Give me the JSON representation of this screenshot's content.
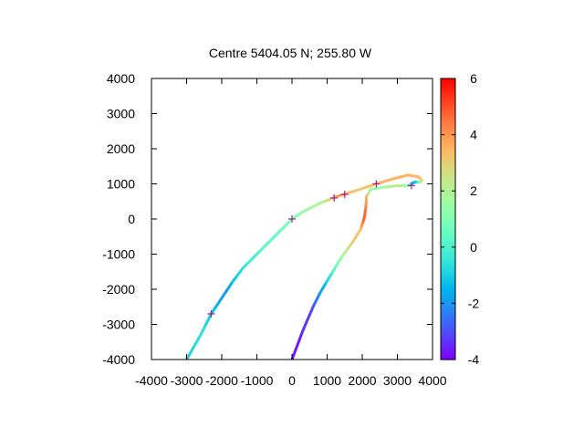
{
  "chart_data": {
    "type": "line",
    "title": "Centre 5404.05 N; 255.80  W",
    "xlabel": "",
    "ylabel": "",
    "xlim": [
      -4000,
      4000
    ],
    "ylim": [
      -4000,
      4000
    ],
    "x_ticks": [
      -4000,
      -3000,
      -2000,
      -1000,
      0,
      1000,
      2000,
      3000,
      4000
    ],
    "y_ticks": [
      -4000,
      -3000,
      -2000,
      -1000,
      0,
      1000,
      2000,
      3000,
      4000
    ],
    "grid": false,
    "colorbar": {
      "range": [
        -4,
        6
      ],
      "ticks": [
        -4,
        -2,
        0,
        2,
        4,
        6
      ],
      "palette": "rainbow"
    },
    "series": [
      {
        "points": [
          {
            "x": 0,
            "y": -4000,
            "c": -3.8
          },
          {
            "x": 300,
            "y": -3200,
            "c": -3.5
          },
          {
            "x": 600,
            "y": -2500,
            "c": -3.0
          },
          {
            "x": 800,
            "y": -2100,
            "c": -2.0
          },
          {
            "x": 1100,
            "y": -1600,
            "c": -0.5
          },
          {
            "x": 1400,
            "y": -1100,
            "c": 1.5
          },
          {
            "x": 1700,
            "y": -700,
            "c": 3.0
          },
          {
            "x": 1950,
            "y": -300,
            "c": 3.2
          },
          {
            "x": 2050,
            "y": 0,
            "c": 4.8
          },
          {
            "x": 2100,
            "y": 300,
            "c": 4.5
          },
          {
            "x": 2120,
            "y": 650,
            "c": 3.5
          },
          {
            "x": 2250,
            "y": 850,
            "c": 1.5
          },
          {
            "x": 2600,
            "y": 900,
            "c": 1.5
          },
          {
            "x": 3000,
            "y": 950,
            "c": 2.5
          },
          {
            "x": 3300,
            "y": 950,
            "c": 1.2
          },
          {
            "x": 3500,
            "y": 1050,
            "c": -2.0
          },
          {
            "x": 3650,
            "y": 1050,
            "c": 1.0
          },
          {
            "x": 3700,
            "y": 1100,
            "c": 2.5
          },
          {
            "x": 3600,
            "y": 1200,
            "c": 3.5
          },
          {
            "x": 3300,
            "y": 1250,
            "c": 3.5
          },
          {
            "x": 2900,
            "y": 1150,
            "c": 3.5
          },
          {
            "x": 2400,
            "y": 1000,
            "c": 3.5
          },
          {
            "x": 1800,
            "y": 800,
            "c": 3.0
          },
          {
            "x": 1300,
            "y": 650,
            "c": 4.0
          },
          {
            "x": 800,
            "y": 450,
            "c": 2.0
          },
          {
            "x": 300,
            "y": 200,
            "c": 1.5
          },
          {
            "x": 0,
            "y": 0,
            "c": 1.0
          },
          {
            "x": -400,
            "y": -400,
            "c": 0.5
          },
          {
            "x": -900,
            "y": -900,
            "c": 0.2
          },
          {
            "x": -1400,
            "y": -1400,
            "c": -0.5
          },
          {
            "x": -1700,
            "y": -1800,
            "c": -1.2
          },
          {
            "x": -1900,
            "y": -2100,
            "c": -2.0
          },
          {
            "x": -2300,
            "y": -2700,
            "c": -1.2
          },
          {
            "x": -2600,
            "y": -3300,
            "c": -0.5
          },
          {
            "x": -3000,
            "y": -4000,
            "c": -1.0
          }
        ]
      }
    ],
    "markers": [
      {
        "x": 0,
        "y": 0
      },
      {
        "x": 2400,
        "y": 1000
      },
      {
        "x": -2300,
        "y": -2700
      },
      {
        "x": 1200,
        "y": 600
      },
      {
        "x": 1500,
        "y": 700
      },
      {
        "x": 3400,
        "y": 950
      }
    ]
  }
}
